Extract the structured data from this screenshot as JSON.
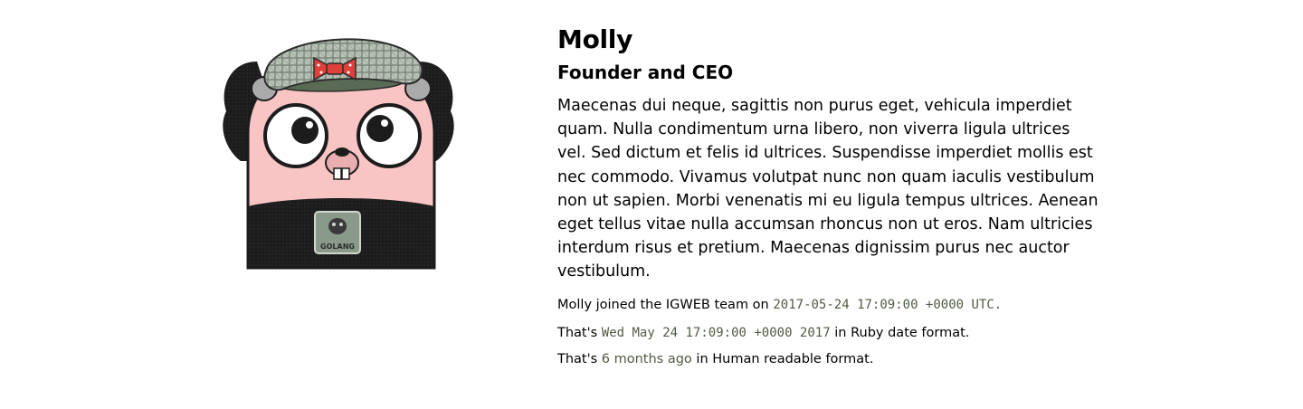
{
  "profile": {
    "name": "Molly",
    "title": "Founder and CEO",
    "bio": "Maecenas dui neque, sagittis non purus eget, vehicula imperdiet quam. Nulla condimentum urna libero, non viverra ligula ultrices vel. Sed dictum et felis id ultrices. Suspendisse imperdiet mollis est nec commodo. Vivamus volutpat nunc non quam iaculis vestibulum non ut sapien. Morbi venenatis mi eu ligula tempus ultrices. Aenean eget tellus vitae nulla accumsan rhoncus non ut eros. Nam ultricies interdum risus et pretium. Maecenas dignissim purus nec auctor vestibulum.",
    "avatar": {
      "icon": "gopher-avatar-icon",
      "badge_text": "GOLANG"
    },
    "joined": {
      "prefix": "Molly joined the IGWEB team on ",
      "value": "2017-05-24 17:09:00 +0000 UTC."
    },
    "ruby": {
      "prefix": "That's ",
      "value": "Wed May 24 17:09:00 +0000 2017",
      "suffix": " in Ruby date format."
    },
    "human": {
      "prefix": "That's ",
      "value": "6 months ago",
      "suffix": " in Human readable format."
    }
  },
  "colors": {
    "highlight": "#4f5b43",
    "skin": "#f9c4c4",
    "hair": "#1c1c1c",
    "cap": "#8a9a8a",
    "bow": "#e0403a"
  }
}
